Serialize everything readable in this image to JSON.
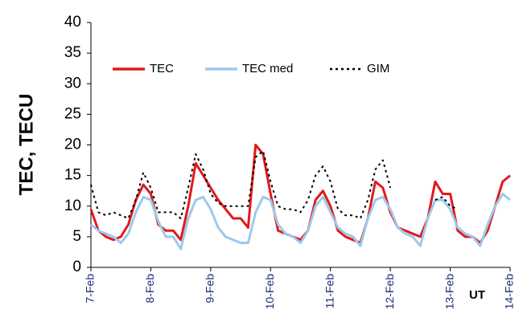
{
  "chart_data": {
    "type": "line",
    "y_label": "TEC, TECU",
    "x_label": "UT",
    "x": [
      0,
      0.125,
      0.25,
      0.375,
      0.5,
      0.625,
      0.75,
      0.875,
      1,
      1.125,
      1.25,
      1.375,
      1.5,
      1.625,
      1.75,
      1.875,
      2,
      2.125,
      2.25,
      2.375,
      2.5,
      2.625,
      2.75,
      2.875,
      3,
      3.125,
      3.25,
      3.375,
      3.5,
      3.625,
      3.75,
      3.875,
      4,
      4.125,
      4.25,
      4.375,
      4.5,
      4.625,
      4.75,
      4.875,
      5,
      5.125,
      5.25,
      5.375,
      5.5,
      5.625,
      5.75,
      5.875,
      6,
      6.125,
      6.25,
      6.375,
      6.5,
      6.625,
      6.75,
      6.875,
      7
    ],
    "series": [
      {
        "name": "TEC",
        "color": "#e2191c",
        "style": "solid",
        "width": 3,
        "values": [
          9.5,
          6,
          5,
          4.5,
          5,
          7,
          11,
          13.5,
          12,
          7,
          6,
          6,
          4.5,
          10,
          17,
          15,
          13,
          11,
          9.5,
          8,
          8,
          6.5,
          20,
          18.5,
          12,
          6,
          5.5,
          5,
          4.5,
          6,
          11,
          12.5,
          10,
          6,
          5,
          4.5,
          4,
          8,
          14,
          13,
          9,
          6.5,
          6,
          5.5,
          5,
          8,
          14,
          12,
          12,
          6,
          5,
          5,
          4,
          6,
          10,
          14,
          15
        ]
      },
      {
        "name": "TEC med",
        "color": "#9dc9ec",
        "style": "solid",
        "width": 3,
        "values": [
          7,
          6,
          5.5,
          5,
          4,
          5.5,
          9,
          11.5,
          11,
          7.5,
          5,
          5,
          3,
          8,
          11,
          11.5,
          9.5,
          6.5,
          5,
          4.5,
          4,
          4,
          9,
          11.5,
          11,
          7,
          5.5,
          5,
          4,
          6,
          10,
          11.5,
          9,
          6.5,
          5.5,
          5,
          3.5,
          8,
          11,
          11.5,
          9.5,
          6.5,
          5.5,
          5,
          3.5,
          8,
          11,
          11,
          9.5,
          6.5,
          5.5,
          5,
          3.5,
          7,
          10,
          12,
          11
        ]
      },
      {
        "name": "GIM",
        "color": "#000000",
        "style": "dotted",
        "width": 2,
        "values": [
          13.5,
          9,
          8.5,
          9,
          8.5,
          8,
          11,
          15.5,
          13,
          9,
          9,
          9,
          8,
          13,
          18.5,
          16,
          12,
          10.5,
          10,
          10,
          10,
          10,
          18,
          19,
          14,
          10,
          9.5,
          9.5,
          9,
          11,
          15,
          16.5,
          14,
          9.5,
          8.5,
          8.5,
          8,
          11,
          16,
          17.5,
          13,
          null,
          null,
          null,
          null,
          null,
          11,
          11.5,
          10,
          9.5,
          null,
          null,
          null,
          null,
          null,
          null,
          null
        ]
      }
    ],
    "xlim": [
      0,
      7
    ],
    "xticks": [
      {
        "value": 0,
        "label": "7-Feb"
      },
      {
        "value": 1,
        "label": "8-Feb"
      },
      {
        "value": 2,
        "label": "9-Feb"
      },
      {
        "value": 3,
        "label": "10-Feb"
      },
      {
        "value": 4,
        "label": "11-Feb"
      },
      {
        "value": 5,
        "label": "12-Feb"
      },
      {
        "value": 6,
        "label": "13-Feb"
      },
      {
        "value": 7,
        "label": "14-Feb"
      }
    ],
    "ylim": [
      0,
      40
    ],
    "yticks": [
      0,
      5,
      10,
      15,
      20,
      25,
      30,
      35,
      40
    ],
    "legend": "top",
    "grid": false
  }
}
